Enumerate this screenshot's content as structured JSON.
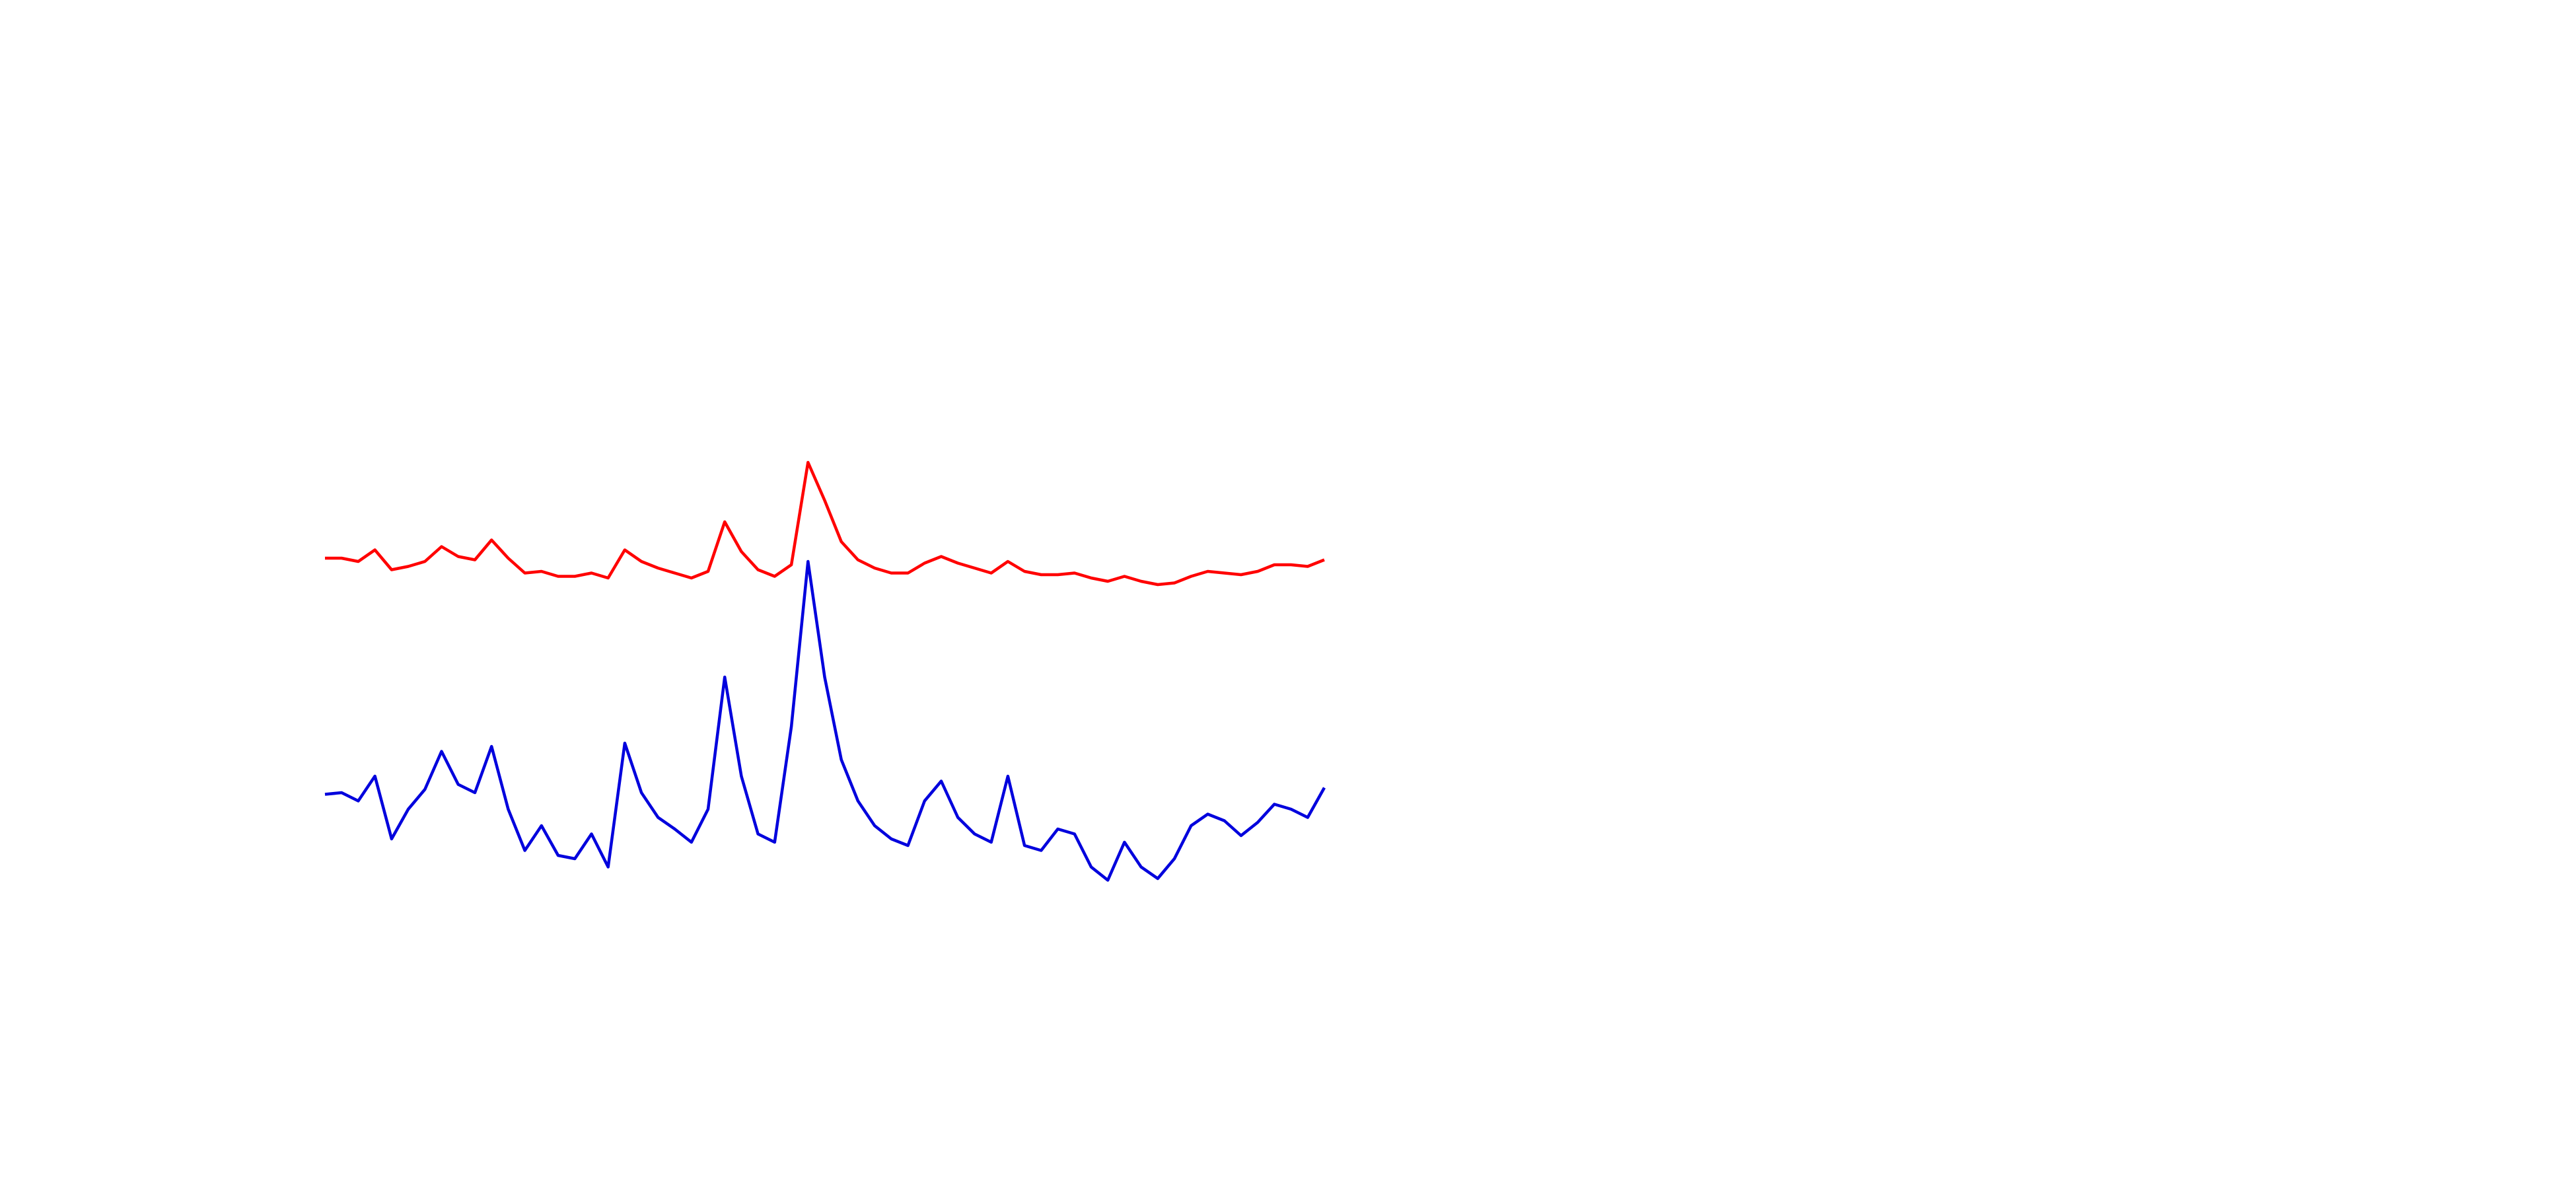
{
  "chart_data": {
    "type": "line",
    "x": [
      0,
      1,
      2,
      3,
      4,
      5,
      6,
      7,
      8,
      9,
      10,
      11,
      12,
      13,
      14,
      15,
      16,
      17,
      18,
      19,
      20,
      21,
      22,
      23,
      24,
      25,
      26,
      27,
      28,
      29,
      30,
      31,
      32,
      33,
      34,
      35,
      36,
      37,
      38,
      39,
      40,
      41,
      42,
      43,
      44,
      45,
      46,
      47,
      48,
      49,
      50,
      51,
      52,
      53,
      54,
      55,
      56,
      57,
      58,
      59,
      60
    ],
    "xlim": [
      0,
      60
    ],
    "ylim": [
      0,
      720
    ],
    "series": [
      {
        "color": "#ff0000",
        "values": [
          382,
          382,
          380,
          387,
          375,
          377,
          380,
          389,
          383,
          381,
          393,
          382,
          373,
          374,
          371,
          371,
          373,
          370,
          387,
          380,
          376,
          373,
          370,
          374,
          404,
          386,
          375,
          371,
          378,
          440,
          417,
          392,
          381,
          376,
          373,
          373,
          379,
          383,
          379,
          376,
          373,
          380,
          374,
          372,
          372,
          373,
          370,
          368,
          371,
          368,
          366,
          367,
          371,
          374,
          373,
          372,
          374,
          378,
          378,
          377,
          381
        ]
      },
      {
        "color": "#0000dd",
        "values": [
          239,
          240,
          235,
          250,
          212,
          230,
          242,
          265,
          245,
          240,
          268,
          230,
          205,
          220,
          202,
          200,
          215,
          195,
          270,
          240,
          225,
          218,
          210,
          230,
          310,
          250,
          215,
          210,
          280,
          380,
          310,
          260,
          235,
          220,
          212,
          208,
          235,
          247,
          225,
          215,
          210,
          250,
          208,
          205,
          218,
          215,
          195,
          187,
          210,
          195,
          188,
          200,
          220,
          227,
          223,
          214,
          222,
          233,
          230,
          225,
          243
        ]
      }
    ]
  }
}
